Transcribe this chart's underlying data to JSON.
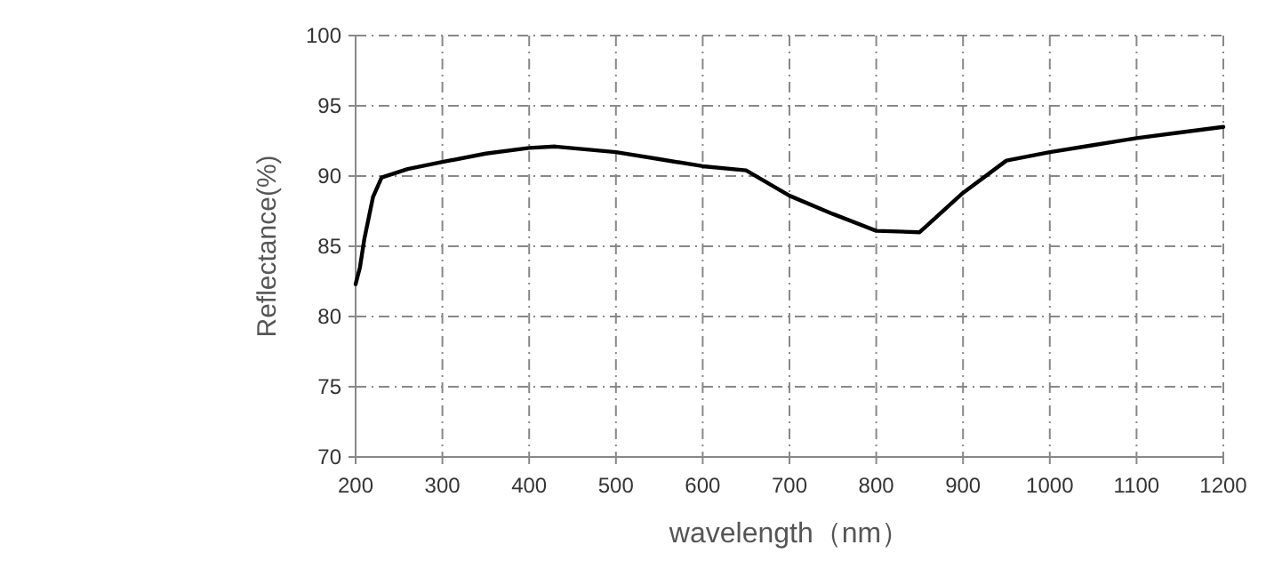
{
  "chart_data": {
    "type": "line",
    "xlabel": "wavelength（nm）",
    "ylabel": "Reflectance(%)",
    "x": [
      200,
      205,
      210,
      220,
      230,
      260,
      300,
      350,
      400,
      430,
      500,
      550,
      600,
      650,
      700,
      750,
      800,
      850,
      900,
      950,
      1000,
      1050,
      1100,
      1150,
      1200
    ],
    "series": [
      {
        "color": "#000000",
        "values": [
          82.3,
          83.5,
          85.5,
          88.5,
          89.9,
          90.5,
          91.0,
          91.6,
          92.0,
          92.1,
          91.7,
          91.2,
          90.7,
          90.4,
          88.6,
          87.3,
          86.1,
          86.0,
          88.8,
          91.1,
          91.7,
          92.2,
          92.7,
          93.1,
          93.5
        ]
      }
    ],
    "xlim": [
      200,
      1200
    ],
    "ylim": [
      70,
      100
    ],
    "xticks": [
      200,
      300,
      400,
      500,
      600,
      700,
      800,
      900,
      1000,
      1100,
      1200
    ],
    "yticks": [
      70,
      75,
      80,
      85,
      90,
      95,
      100
    ],
    "grid": true,
    "marker": "none",
    "line_style": "solid"
  }
}
